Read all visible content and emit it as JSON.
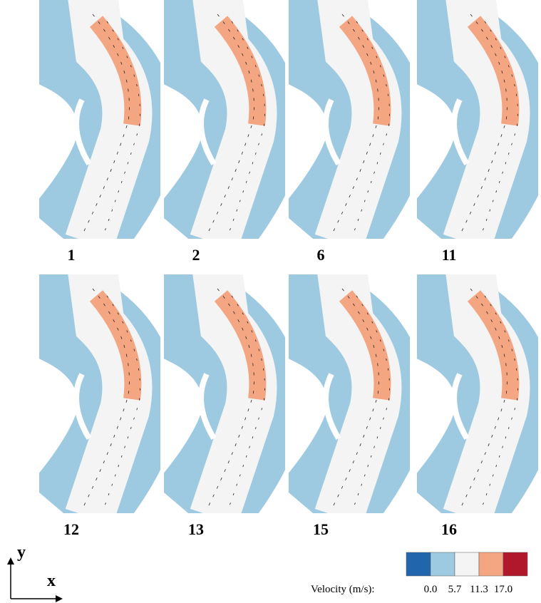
{
  "panels": [
    {
      "label": "1"
    },
    {
      "label": "2"
    },
    {
      "label": "6"
    },
    {
      "label": "11"
    },
    {
      "label": "12"
    },
    {
      "label": "13"
    },
    {
      "label": "15"
    },
    {
      "label": "16"
    }
  ],
  "axes": {
    "y": "y",
    "x": "x"
  },
  "legend": {
    "title": "Velocity (m/s):",
    "ticks": [
      "0.0",
      "5.7",
      "11.3",
      "17.0"
    ],
    "colors": [
      "#2166ac",
      "#9ecae1",
      "#f4f4f4",
      "#f4a582",
      "#b2182b"
    ]
  }
}
